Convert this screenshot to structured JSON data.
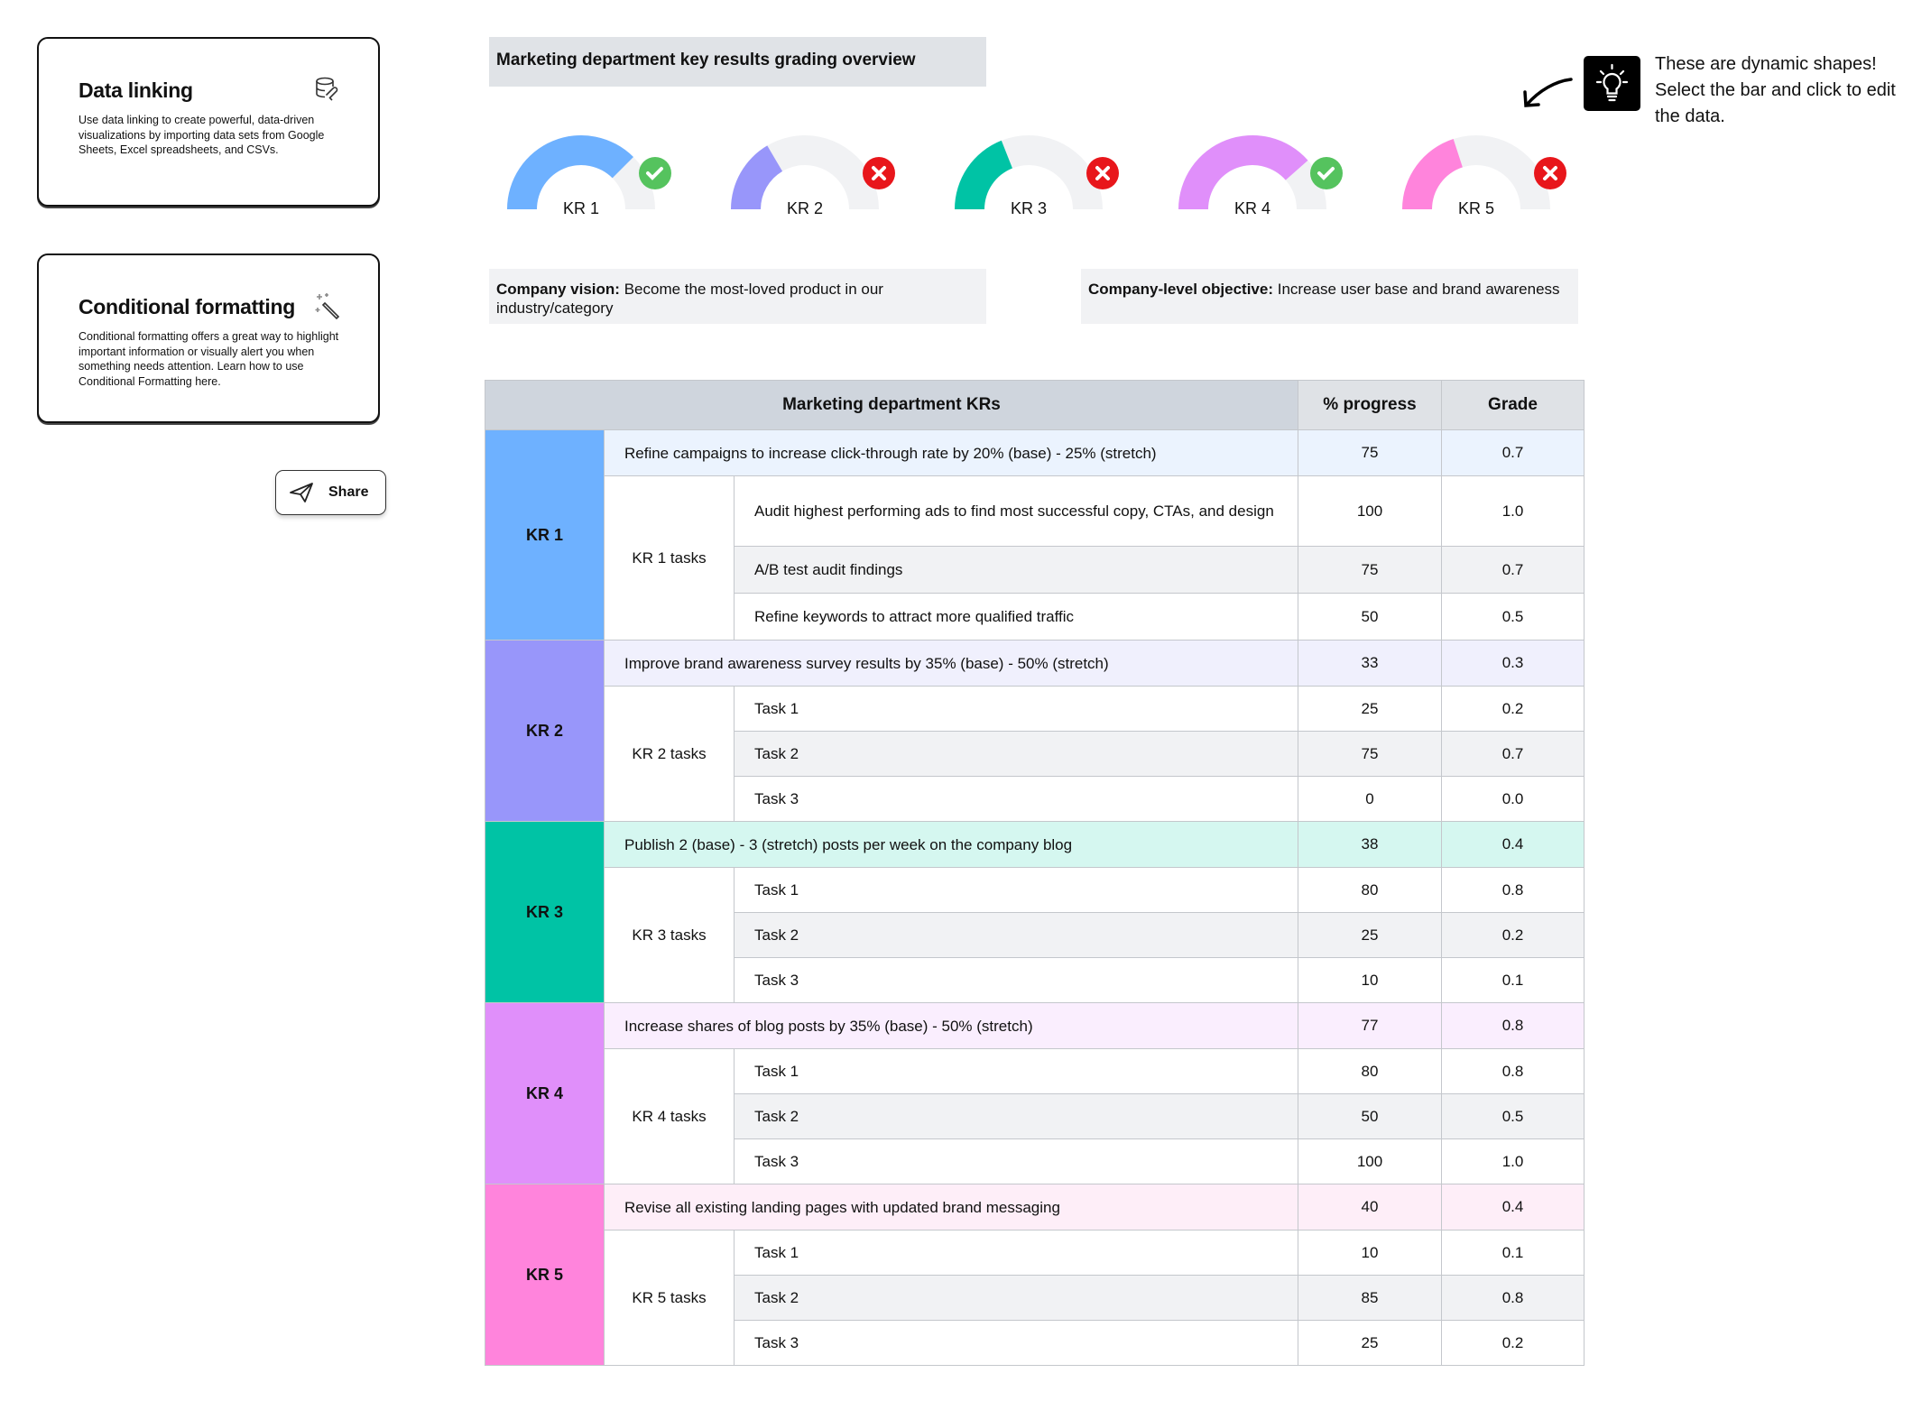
{
  "cards": [
    {
      "title": "Data linking",
      "body": "Use data linking to create powerful, data-driven visualizations by importing data sets from Google Sheets, Excel spreadsheets, and CSVs.",
      "icon": "database-link-icon"
    },
    {
      "title": "Conditional formatting",
      "body": "Conditional formatting offers a great way to highlight important information or visually alert you when something needs attention. Learn how to use Conditional Formatting here.",
      "icon": "magic-wand-icon"
    }
  ],
  "share": {
    "label": "Share",
    "icon": "paper-plane-icon"
  },
  "overview_title": "Marketing department key results grading overview",
  "tip": {
    "text": "These are dynamic shapes! Select the bar and click to edit the data.",
    "icon": "lightbulb-icon"
  },
  "gauges": [
    {
      "label": "KR 1",
      "progress": 75,
      "color": "#6EB1FF",
      "status": "pass"
    },
    {
      "label": "KR 2",
      "progress": 33,
      "color": "#9896FA",
      "status": "fail"
    },
    {
      "label": "KR 3",
      "progress": 38,
      "color": "#00C3A5",
      "status": "fail"
    },
    {
      "label": "KR 4",
      "progress": 77,
      "color": "#E08FFA",
      "status": "pass"
    },
    {
      "label": "KR 5",
      "progress": 40,
      "color": "#FF84DC",
      "status": "fail"
    }
  ],
  "status_colors": {
    "pass": "#55C35E",
    "fail": "#E8161B",
    "track": "#F1F2F4"
  },
  "vision": {
    "label": "Company vision:",
    "text": " Become the most-loved product in our industry/category"
  },
  "objective": {
    "label": "Company-level objective:",
    "text": " Increase user base and brand awareness"
  },
  "table": {
    "headers": [
      "Marketing department KRs",
      "% progress",
      "Grade"
    ],
    "krs": [
      {
        "name": "KR 1",
        "color": "#6EB1FF",
        "tint": "#EBF3FE",
        "title": "Refine campaigns to increase click-through rate by 20% (base) - 25% (stretch)",
        "progress": "75",
        "grade": "0.7",
        "tasks_label": "KR 1 tasks",
        "tasks": [
          {
            "name": "Audit highest performing ads to find most successful copy, CTAs, and design",
            "progress": "100",
            "grade": "1.0"
          },
          {
            "name": "A/B test audit findings",
            "progress": "75",
            "grade": "0.7"
          },
          {
            "name": "Refine keywords to attract more qualified traffic",
            "progress": "50",
            "grade": "0.5"
          }
        ]
      },
      {
        "name": "KR 2",
        "color": "#9896FA",
        "tint": "#F0F0FD",
        "title": "Improve brand awareness survey results by 35% (base) - 50% (stretch)",
        "progress": "33",
        "grade": "0.3",
        "tasks_label": "KR 2 tasks",
        "tasks": [
          {
            "name": "Task 1",
            "progress": "25",
            "grade": "0.2"
          },
          {
            "name": "Task 2",
            "progress": "75",
            "grade": "0.7"
          },
          {
            "name": "Task 3",
            "progress": "0",
            "grade": "0.0"
          }
        ]
      },
      {
        "name": "KR 3",
        "color": "#00C3A5",
        "tint": "#D5F7F0",
        "title": "Publish 2 (base) - 3 (stretch) posts per week on the company blog",
        "progress": "38",
        "grade": "0.4",
        "tasks_label": "KR 3 tasks",
        "tasks": [
          {
            "name": "Task 1",
            "progress": "80",
            "grade": "0.8"
          },
          {
            "name": "Task 2",
            "progress": "25",
            "grade": "0.2"
          },
          {
            "name": "Task 3",
            "progress": "10",
            "grade": "0.1"
          }
        ]
      },
      {
        "name": "KR 4",
        "color": "#E08FFA",
        "tint": "#FAEEFE",
        "title": "Increase shares of blog posts by 35% (base) - 50% (stretch)",
        "progress": "77",
        "grade": "0.8",
        "tasks_label": "KR 4 tasks",
        "tasks": [
          {
            "name": "Task 1",
            "progress": "80",
            "grade": "0.8"
          },
          {
            "name": "Task 2",
            "progress": "50",
            "grade": "0.5"
          },
          {
            "name": "Task 3",
            "progress": "100",
            "grade": "1.0"
          }
        ]
      },
      {
        "name": "KR 5",
        "color": "#FF84DC",
        "tint": "#FEEEF8",
        "title": "Revise all existing landing pages with updated brand messaging",
        "progress": "40",
        "grade": "0.4",
        "tasks_label": "KR 5 tasks",
        "tasks": [
          {
            "name": "Task 1",
            "progress": "10",
            "grade": "0.1"
          },
          {
            "name": "Task 2",
            "progress": "85",
            "grade": "0.8"
          },
          {
            "name": "Task 3",
            "progress": "25",
            "grade": "0.2"
          }
        ]
      }
    ]
  }
}
